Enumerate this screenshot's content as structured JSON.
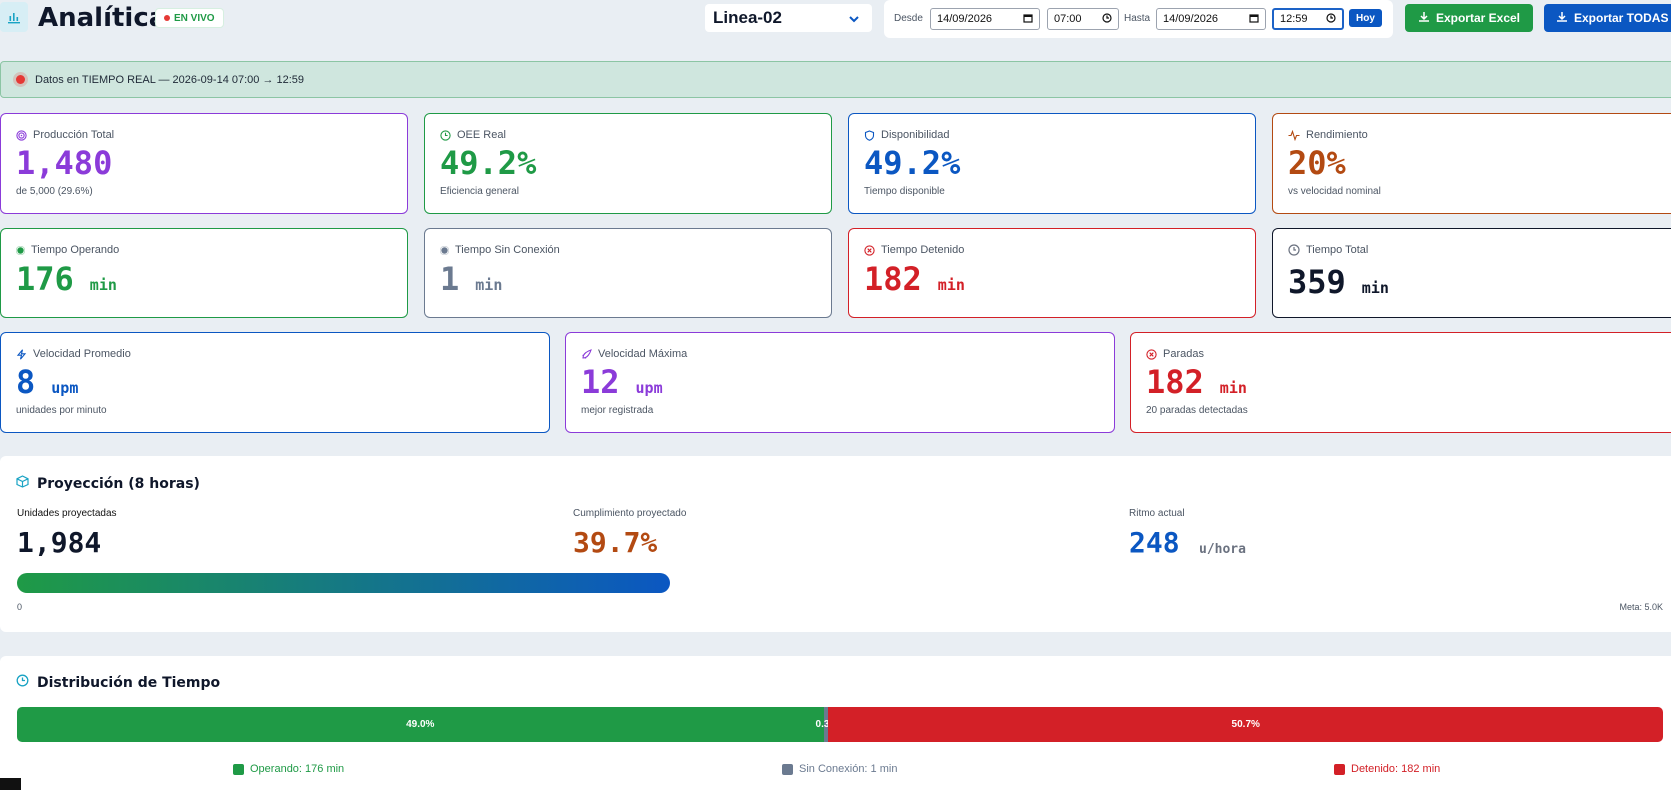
{
  "header": {
    "title": "Analítica",
    "live_badge": "EN VIVO",
    "line_selected": "Linea-02",
    "filters": {
      "desde_label": "Desde",
      "desde_date": "14/09/2026",
      "desde_time": "07:00",
      "hasta_label": "Hasta",
      "hasta_date": "14/09/2026",
      "hasta_time": "12:59",
      "hoy_label": "Hoy"
    },
    "export_excel_label": "Exportar Excel",
    "export_all_label": "Exportar TODAS"
  },
  "banner": {
    "text": "Datos en TIEMPO REAL — 2026-09-14 07:00 → 12:59"
  },
  "kpi_row1": [
    {
      "label": "Producción Total",
      "value": "1,480",
      "sub": "de 5,000 (29.6%)",
      "color": "#8b3bd9",
      "icon": "target-icon"
    },
    {
      "label": "OEE Real",
      "value": "49.2%",
      "sub": "Eficiencia general",
      "color": "#1f9a46",
      "icon": "clock-icon"
    },
    {
      "label": "Disponibilidad",
      "value": "49.2%",
      "sub": "Tiempo disponible",
      "color": "#0b57c2",
      "icon": "shield-icon"
    },
    {
      "label": "Rendimiento",
      "value": "20%",
      "sub": "vs velocidad nominal",
      "color": "#b34a12",
      "icon": "activity-icon"
    }
  ],
  "kpi_row2": [
    {
      "label": "Tiempo Operando",
      "value": "176",
      "unit": "min",
      "color": "#1f9a46",
      "icon": "dot-green-icon"
    },
    {
      "label": "Tiempo Sin Conexión",
      "value": "1",
      "unit": "min",
      "color": "#6b7a90",
      "icon": "dot-gray-icon"
    },
    {
      "label": "Tiempo Detenido",
      "value": "182",
      "unit": "min",
      "color": "#d32027",
      "icon": "x-circle-icon"
    },
    {
      "label": "Tiempo Total",
      "value": "359",
      "unit": "min",
      "color": "#0f172a",
      "icon": "clock-gray-icon"
    }
  ],
  "kpi_row3": [
    {
      "label": "Velocidad Promedio",
      "value": "8",
      "unit": "upm",
      "sub": "unidades por minuto",
      "color": "#0b57c2",
      "icon": "zap-icon"
    },
    {
      "label": "Velocidad Máxima",
      "value": "12",
      "unit": "upm",
      "sub": "mejor registrada",
      "color": "#8b3bd9",
      "icon": "rocket-icon"
    },
    {
      "label": "Paradas",
      "value": "182",
      "unit": "min",
      "sub": "20 paradas detectadas",
      "color": "#d32027",
      "icon": "x-circle-icon"
    }
  ],
  "projection": {
    "title": "Proyección (8 horas)",
    "units_label": "Unidades proyectadas",
    "units_value": "1,984",
    "compliance_label": "Cumplimiento proyectado",
    "compliance_value": "39.7%",
    "rate_label": "Ritmo actual",
    "rate_value": "248",
    "rate_unit": "u/hora",
    "bar_start": "0",
    "bar_goal": "Meta: 5.0K",
    "progress_percent": 39.7
  },
  "distribution": {
    "title": "Distribución de Tiempo",
    "segments": [
      {
        "label": "49.0%",
        "percent": 49.0,
        "color": "#1f9a46"
      },
      {
        "label": "0.3",
        "percent": 0.3,
        "color": "#6b7a90"
      },
      {
        "label": "50.7%",
        "percent": 50.7,
        "color": "#d32027"
      }
    ],
    "legend": [
      {
        "label": "Operando: 176 min",
        "color": "#1f9a46"
      },
      {
        "label": "Sin Conexión: 1 min",
        "color": "#6b7a90"
      },
      {
        "label": "Detenido: 182 min",
        "color": "#d32027"
      }
    ]
  }
}
